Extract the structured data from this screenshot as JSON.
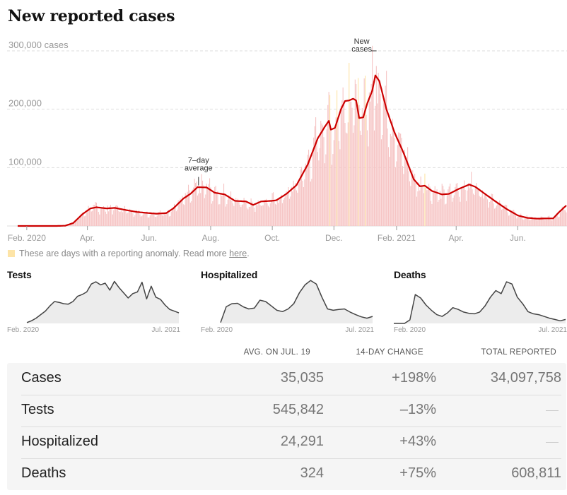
{
  "title": "New reported cases",
  "anomaly_note": {
    "text": "These are days with a reporting anomaly. Read more ",
    "link": "here",
    "period": ".",
    "swatch_color": "#fde4a7"
  },
  "colors": {
    "avg_line": "#cc0000",
    "bars": "#f6c4c4",
    "anomaly_bars": "#fde4a7",
    "small_line": "#444444",
    "small_fill": "#ececec"
  },
  "chart_data": [
    {
      "type": "bar",
      "title": "New reported cases",
      "ylabel": "cases",
      "ylim": [
        0,
        300000
      ],
      "yticks": [
        100000,
        200000,
        300000
      ],
      "ytick_labels": [
        "100,000",
        "200,000",
        "300,000 cases"
      ],
      "grid": true,
      "x_start": "2020-01-23",
      "x_end": "2021-07-19",
      "xticks": [
        {
          "date": "2020-02-01",
          "label": "Feb. 2020"
        },
        {
          "date": "2020-04-01",
          "label": "Apr."
        },
        {
          "date": "2020-06-01",
          "label": "Jun."
        },
        {
          "date": "2020-08-01",
          "label": "Aug."
        },
        {
          "date": "2020-10-01",
          "label": "Oct."
        },
        {
          "date": "2020-12-01",
          "label": "Dec."
        },
        {
          "date": "2021-02-01",
          "label": "Feb. 2021"
        },
        {
          "date": "2021-04-01",
          "label": "Apr."
        },
        {
          "date": "2021-06-01",
          "label": "Jun."
        }
      ],
      "annotations": [
        {
          "text": [
            "7–day",
            "average"
          ],
          "date": "2020-07-20",
          "value": 67000
        },
        {
          "text": [
            "New",
            "cases"
          ],
          "date": "2021-01-08",
          "value": 300000
        }
      ],
      "series": [
        {
          "name": "7-day average",
          "points": [
            [
              "2020-01-23",
              0
            ],
            [
              "2020-03-01",
              0
            ],
            [
              "2020-03-10",
              400
            ],
            [
              "2020-03-18",
              5000
            ],
            [
              "2020-03-27",
              20000
            ],
            [
              "2020-04-04",
              30000
            ],
            [
              "2020-04-10",
              32000
            ],
            [
              "2020-04-20",
              30000
            ],
            [
              "2020-04-28",
              31000
            ],
            [
              "2020-05-10",
              27000
            ],
            [
              "2020-05-20",
              24000
            ],
            [
              "2020-06-01",
              22000
            ],
            [
              "2020-06-08",
              21000
            ],
            [
              "2020-06-18",
              22000
            ],
            [
              "2020-06-25",
              30000
            ],
            [
              "2020-07-05",
              47000
            ],
            [
              "2020-07-12",
              55000
            ],
            [
              "2020-07-19",
              66500
            ],
            [
              "2020-07-28",
              66000
            ],
            [
              "2020-08-05",
              57000
            ],
            [
              "2020-08-15",
              54000
            ],
            [
              "2020-08-25",
              43000
            ],
            [
              "2020-09-05",
              42000
            ],
            [
              "2020-09-12",
              36000
            ],
            [
              "2020-09-20",
              42000
            ],
            [
              "2020-09-30",
              43000
            ],
            [
              "2020-10-05",
              44000
            ],
            [
              "2020-10-15",
              55000
            ],
            [
              "2020-10-25",
              70000
            ],
            [
              "2020-11-05",
              105000
            ],
            [
              "2020-11-15",
              150000
            ],
            [
              "2020-11-22",
              170000
            ],
            [
              "2020-11-26",
              180000
            ],
            [
              "2020-11-28",
              165000
            ],
            [
              "2020-12-02",
              168000
            ],
            [
              "2020-12-08",
              200000
            ],
            [
              "2020-12-12",
              214000
            ],
            [
              "2020-12-16",
              215000
            ],
            [
              "2020-12-20",
              218000
            ],
            [
              "2020-12-23",
              215000
            ],
            [
              "2020-12-26",
              185000
            ],
            [
              "2020-12-30",
              186000
            ],
            [
              "2021-01-03",
              210000
            ],
            [
              "2021-01-08",
              232000
            ],
            [
              "2021-01-11",
              258000
            ],
            [
              "2021-01-15",
              248000
            ],
            [
              "2021-01-22",
              200000
            ],
            [
              "2021-01-30",
              160000
            ],
            [
              "2021-02-08",
              125000
            ],
            [
              "2021-02-18",
              80000
            ],
            [
              "2021-02-24",
              68000
            ],
            [
              "2021-03-01",
              69000
            ],
            [
              "2021-03-08",
              60000
            ],
            [
              "2021-03-18",
              54000
            ],
            [
              "2021-03-25",
              55000
            ],
            [
              "2021-04-03",
              63000
            ],
            [
              "2021-04-14",
              71000
            ],
            [
              "2021-04-20",
              67000
            ],
            [
              "2021-05-01",
              53000
            ],
            [
              "2021-05-10",
              42000
            ],
            [
              "2021-05-20",
              30000
            ],
            [
              "2021-06-01",
              18000
            ],
            [
              "2021-06-10",
              14000
            ],
            [
              "2021-06-20",
              12500
            ],
            [
              "2021-07-01",
              13000
            ],
            [
              "2021-07-06",
              13000
            ],
            [
              "2021-07-12",
              24000
            ],
            [
              "2021-07-19",
              35035
            ]
          ]
        }
      ]
    },
    {
      "type": "area",
      "title": "Tests",
      "x_start_label": "Feb. 2020",
      "x_end_label": "Jul. 2021",
      "values": [
        0.02,
        0.06,
        0.12,
        0.2,
        0.28,
        0.4,
        0.5,
        0.48,
        0.45,
        0.44,
        0.5,
        0.62,
        0.66,
        0.72,
        0.9,
        0.95,
        0.88,
        0.92,
        0.76,
        0.96,
        0.82,
        0.7,
        0.58,
        0.68,
        0.72,
        0.94,
        0.56,
        0.85,
        0.6,
        0.55,
        0.42,
        0.32,
        0.28,
        0.24
      ]
    },
    {
      "type": "area",
      "title": "Hospitalized",
      "x_start_label": "Feb. 2020",
      "x_end_label": "Jul. 2021",
      "values": [
        0.02,
        0.38,
        0.45,
        0.46,
        0.38,
        0.33,
        0.35,
        0.53,
        0.5,
        0.4,
        0.3,
        0.27,
        0.33,
        0.45,
        0.7,
        0.88,
        0.98,
        0.9,
        0.6,
        0.33,
        0.3,
        0.32,
        0.33,
        0.26,
        0.2,
        0.15,
        0.12,
        0.16
      ]
    },
    {
      "type": "area",
      "title": "Deaths",
      "x_start_label": "Feb. 2020",
      "x_end_label": "Jul. 2021",
      "values": [
        0,
        0,
        0,
        0.08,
        0.66,
        0.58,
        0.42,
        0.3,
        0.2,
        0.16,
        0.24,
        0.36,
        0.32,
        0.26,
        0.23,
        0.22,
        0.26,
        0.4,
        0.6,
        0.75,
        0.68,
        0.95,
        0.9,
        0.6,
        0.45,
        0.27,
        0.22,
        0.2,
        0.16,
        0.12,
        0.09,
        0.06,
        0.09
      ]
    }
  ],
  "table": {
    "headers": [
      "AVG. ON JUL. 19",
      "14-DAY CHANGE",
      "TOTAL REPORTED"
    ],
    "rows": [
      {
        "label": "Cases",
        "avg": "35,035",
        "change": "+198%",
        "total": "34,097,758"
      },
      {
        "label": "Tests",
        "avg": "545,842",
        "change": "–13%",
        "total": null
      },
      {
        "label": "Hospitalized",
        "avg": "24,291",
        "change": "+43%",
        "total": null
      },
      {
        "label": "Deaths",
        "avg": "324",
        "change": "+75%",
        "total": "608,811"
      }
    ]
  }
}
